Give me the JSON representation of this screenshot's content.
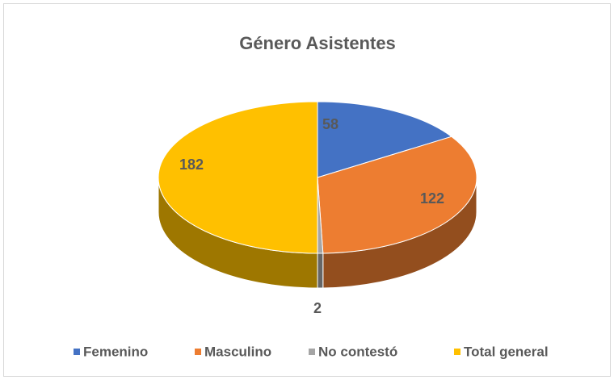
{
  "chart_data": {
    "type": "pie",
    "title": "Género Asistentes",
    "categories": [
      "Femenino",
      "Masculino",
      "No contestó",
      "Total general"
    ],
    "values": [
      58,
      122,
      2,
      182
    ],
    "colors": [
      "#4472c4",
      "#ed7d31",
      "#a5a5a5",
      "#ffc000"
    ],
    "legend": "bottom"
  }
}
